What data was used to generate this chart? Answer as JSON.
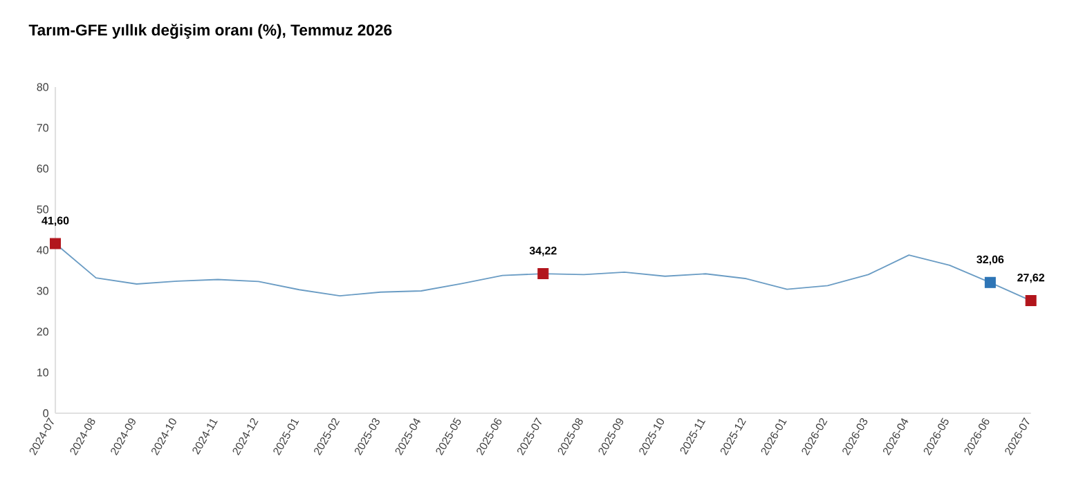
{
  "chart_data": {
    "type": "line",
    "title": "Tarım-GFE yıllık değişim oranı (%), Temmuz 2026",
    "categories": [
      "2024-07",
      "2024-08",
      "2024-09",
      "2024-10",
      "2024-11",
      "2024-12",
      "2025-01",
      "2025-02",
      "2025-03",
      "2025-04",
      "2025-05",
      "2025-06",
      "2025-07",
      "2025-08",
      "2025-09",
      "2025-10",
      "2025-11",
      "2025-12",
      "2026-01",
      "2026-02",
      "2026-03",
      "2026-04",
      "2026-05",
      "2026-06",
      "2026-07"
    ],
    "series": [
      {
        "color": "#6a9cc4",
        "marker": "none",
        "values": [
          41.6,
          33.2,
          31.7,
          32.4,
          32.8,
          32.3,
          30.3,
          28.8,
          29.7,
          30.0,
          31.8,
          33.8,
          34.22,
          34.0,
          34.6,
          33.6,
          34.2,
          33.0,
          30.4,
          31.3,
          34.0,
          38.8,
          36.3,
          32.06,
          27.62
        ]
      },
      {
        "type": "scatter",
        "color": "#b2151c",
        "marker": "square",
        "values": [
          41.6,
          null,
          null,
          null,
          null,
          null,
          null,
          null,
          null,
          null,
          null,
          null,
          34.22,
          null,
          null,
          null,
          null,
          null,
          null,
          null,
          null,
          null,
          null,
          null,
          27.62
        ],
        "value_labels": [
          "41,60",
          null,
          null,
          null,
          null,
          null,
          null,
          null,
          null,
          null,
          null,
          null,
          "34,22",
          null,
          null,
          null,
          null,
          null,
          null,
          null,
          null,
          null,
          null,
          null,
          "27,62"
        ]
      },
      {
        "type": "scatter",
        "color": "#2e75b6",
        "marker": "square",
        "values": [
          null,
          null,
          null,
          null,
          null,
          null,
          null,
          null,
          null,
          null,
          null,
          null,
          null,
          null,
          null,
          null,
          null,
          null,
          null,
          null,
          null,
          null,
          null,
          32.06,
          null
        ],
        "value_labels": [
          null,
          null,
          null,
          null,
          null,
          null,
          null,
          null,
          null,
          null,
          null,
          null,
          null,
          null,
          null,
          null,
          null,
          null,
          null,
          null,
          null,
          null,
          null,
          "32,06",
          null
        ]
      }
    ],
    "ylim": [
      0,
      80
    ],
    "yticks": [
      0,
      10,
      20,
      30,
      40,
      50,
      60,
      70,
      80
    ],
    "grid": false
  }
}
